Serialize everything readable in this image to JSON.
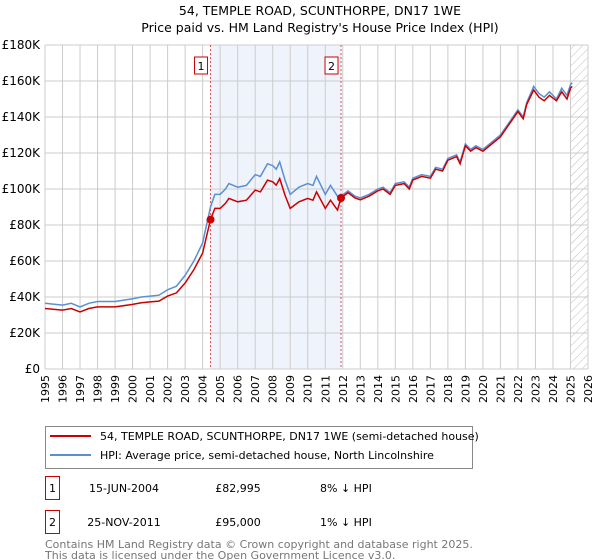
{
  "chart_data": {
    "type": "line",
    "title": "54, TEMPLE ROAD, SCUNTHORPE, DN17 1WE",
    "subtitle": "Price paid vs. HM Land Registry's House Price Index (HPI)",
    "xlim": [
      1995,
      2026
    ],
    "ylim": [
      0,
      180000
    ],
    "x_ticks": [
      "1995",
      "1996",
      "1997",
      "1998",
      "1999",
      "2000",
      "2001",
      "2002",
      "2003",
      "2004",
      "2005",
      "2006",
      "2007",
      "2008",
      "2009",
      "2010",
      "2011",
      "2012",
      "2013",
      "2014",
      "2015",
      "2016",
      "2017",
      "2018",
      "2019",
      "2020",
      "2021",
      "2022",
      "2023",
      "2024",
      "2025",
      "2026"
    ],
    "y_ticks": [
      "£0",
      "£20K",
      "£40K",
      "£60K",
      "£80K",
      "£100K",
      "£120K",
      "£140K",
      "£160K",
      "£180K"
    ],
    "grid": true,
    "shaded_period": [
      2004.45,
      2011.9
    ],
    "forecast_hatch_from": 2025.0,
    "x": [
      1995,
      1996,
      1996.5,
      1997,
      1997.5,
      1998,
      1999,
      2000,
      2000.5,
      2001,
      2001.5,
      2002,
      2002.5,
      2003,
      2003.5,
      2004,
      2004.45,
      2004.7,
      2005,
      2005.3,
      2005.5,
      2006,
      2006.5,
      2007,
      2007.3,
      2007.7,
      2008,
      2008.2,
      2008.4,
      2008.7,
      2009,
      2009.5,
      2010,
      2010.3,
      2010.5,
      2010.8,
      2011,
      2011.3,
      2011.7,
      2011.9,
      2012.3,
      2012.7,
      2013,
      2013.5,
      2014,
      2014.3,
      2014.7,
      2015,
      2015.5,
      2015.8,
      2016,
      2016.5,
      2017,
      2017.3,
      2017.7,
      2018,
      2018.5,
      2018.7,
      2019,
      2019.3,
      2019.6,
      2020,
      2020.5,
      2021,
      2021.5,
      2022,
      2022.3,
      2022.5,
      2022.9,
      2023.2,
      2023.5,
      2023.8,
      2024.2,
      2024.5,
      2024.8,
      2025,
      2025.1
    ],
    "series": [
      {
        "name": "54, TEMPLE ROAD, SCUNTHORPE, DN17 1WE (semi-detached house)",
        "color": "#cc0000",
        "values": [
          33.6,
          32.7,
          33.6,
          31.7,
          33.6,
          34.5,
          34.5,
          35.9,
          36.8,
          37.3,
          37.7,
          40.5,
          42.3,
          47.8,
          55.2,
          64.4,
          83,
          89.2,
          89.2,
          92,
          94.8,
          92.9,
          93.8,
          99.4,
          98.4,
          104.9,
          104,
          102.1,
          105.8,
          96.6,
          89.2,
          92.9,
          94.8,
          93.8,
          98.4,
          92.9,
          89.2,
          93.8,
          88.3,
          95,
          98,
          95,
          94,
          96,
          99,
          100,
          97,
          102,
          103,
          100,
          105,
          107,
          106,
          111,
          110,
          116,
          118,
          114,
          124,
          121,
          123,
          121,
          125,
          129,
          136,
          143,
          139,
          147,
          155,
          151,
          149,
          152,
          149,
          154,
          150,
          156,
          157
        ]
      },
      {
        "name": "HPI: Average price, semi-detached house, North Lincolnshire",
        "color": "#5b8fd4",
        "values": [
          36.5,
          35.5,
          36.5,
          34.5,
          36.5,
          37.5,
          37.5,
          39,
          40,
          40.5,
          41,
          44,
          46,
          52,
          60,
          70,
          90,
          97,
          97,
          100,
          103,
          101,
          102,
          108,
          107,
          114,
          113,
          111,
          115,
          105,
          97,
          101,
          103,
          102,
          107,
          101,
          97,
          102,
          96,
          96,
          99,
          96,
          95,
          97,
          100,
          101,
          98,
          103,
          104,
          101,
          106,
          108,
          107,
          112,
          111,
          117,
          119,
          115,
          125,
          122,
          124,
          122,
          126,
          130,
          137,
          144,
          140,
          148,
          157,
          153,
          151,
          154,
          150,
          156,
          152,
          158,
          159
        ]
      }
    ],
    "value_units": "£K",
    "sales": [
      {
        "label": "1",
        "date": "15-JUN-2004",
        "x": 2004.45,
        "price": "£82,995",
        "value": 83,
        "hpi_diff": "8% ↓ HPI"
      },
      {
        "label": "2",
        "date": "25-NOV-2011",
        "x": 2011.9,
        "price": "£95,000",
        "value": 95,
        "hpi_diff": "1% ↓ HPI"
      }
    ]
  },
  "footer": {
    "line1": "Contains HM Land Registry data © Crown copyright and database right 2025.",
    "line2": "This data is licensed under the Open Government Licence v3.0."
  }
}
